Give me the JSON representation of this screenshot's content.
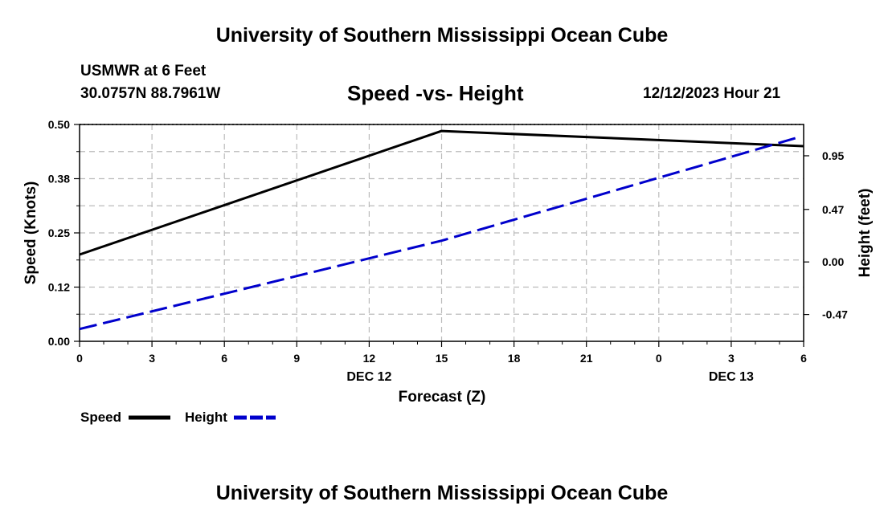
{
  "header": {
    "title": "University of Southern Mississippi Ocean Cube",
    "station": "USMWR at 6 Feet",
    "coords": "30.0757N  88.7961W",
    "chart_title": "Speed -vs- Height",
    "datetime": "12/12/2023 Hour 21"
  },
  "footer": {
    "title": "University of Southern Mississippi Ocean Cube"
  },
  "chart_data": {
    "type": "line",
    "title": "Speed -vs- Height",
    "xlabel": "Forecast (Z)",
    "ylabel": "Speed (Knots)",
    "y2label": "Height (feet)",
    "x": [
      0,
      15,
      30
    ],
    "x_range": [
      0,
      30
    ],
    "x_tick_labels": [
      "0",
      "3",
      "6",
      "9",
      "12",
      "15",
      "18",
      "21",
      "0",
      "3",
      "6"
    ],
    "x_date_labels": [
      {
        "at": 12,
        "text": "DEC 12"
      },
      {
        "at": 27,
        "text": "DEC 13"
      }
    ],
    "ylim": [
      0,
      0.5
    ],
    "y_ticks": [
      "0.00",
      "0.12",
      "0.25",
      "0.38",
      "0.50"
    ],
    "y2lim": [
      -0.71,
      1.23
    ],
    "y2_ticks": [
      "-0.47",
      "0.00",
      "0.47",
      "0.95"
    ],
    "y2_tick_values": [
      -0.47,
      0.0,
      0.47,
      0.95
    ],
    "grid": true,
    "series": [
      {
        "name": "Speed",
        "axis": "left",
        "color": "#000000",
        "style": "solid",
        "x": [
          0,
          15,
          30
        ],
        "values": [
          0.2,
          0.485,
          0.45
        ]
      },
      {
        "name": "Height",
        "axis": "right",
        "color": "#0000cc",
        "style": "dashed",
        "x": [
          0,
          15,
          29.7
        ],
        "values": [
          -0.6,
          0.19,
          1.11
        ]
      }
    ],
    "legend": [
      "Speed",
      "Height"
    ],
    "legend_position": "bottom-left"
  }
}
